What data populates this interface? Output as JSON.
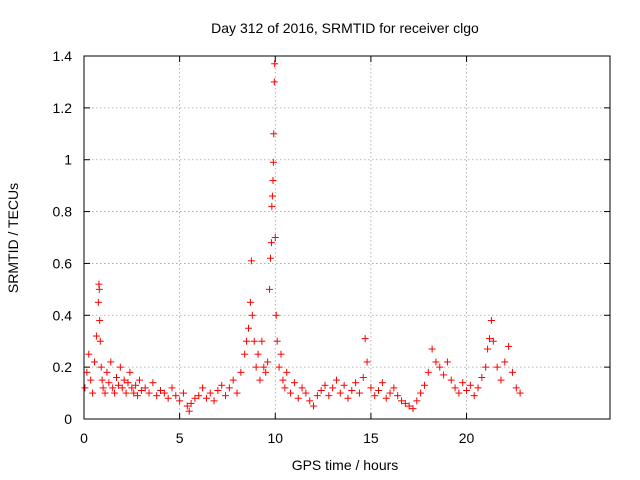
{
  "chart_data": {
    "type": "scatter",
    "title": "Day 312 of 2016, SRMTID for receiver clgo",
    "xlabel": "GPS time / hours",
    "ylabel": "SRMTID / TECUs",
    "xlim": [
      0,
      27.5
    ],
    "ylim": [
      0,
      1.4
    ],
    "xticks": [
      0,
      5,
      10,
      15,
      20
    ],
    "xtick_labels": [
      "0",
      "5",
      "10",
      "15",
      "20"
    ],
    "yticks": [
      0,
      0.2,
      0.4,
      0.6,
      0.8,
      1.0,
      1.2,
      1.4
    ],
    "ytick_labels": [
      "0",
      "0.2",
      "0.4",
      "0.6",
      "0.8",
      "1",
      "1.2",
      "1.4"
    ],
    "grid": true,
    "marker": "+",
    "color": "#ff0000",
    "series": [
      {
        "name": "SRMTID",
        "x": [
          0.05,
          0.15,
          0.25,
          0.35,
          0.45,
          0.55,
          0.65,
          0.75,
          0.78,
          0.8,
          0.82,
          0.85,
          0.9,
          0.95,
          1.0,
          1.1,
          1.2,
          1.3,
          1.4,
          1.5,
          1.6,
          1.7,
          1.8,
          1.9,
          2.0,
          2.1,
          2.2,
          2.3,
          2.4,
          2.5,
          2.6,
          2.7,
          2.8,
          2.9,
          3.0,
          3.2,
          3.4,
          3.6,
          3.8,
          4.0,
          4.2,
          4.4,
          4.6,
          4.8,
          5.0,
          5.2,
          5.4,
          5.5,
          5.6,
          5.8,
          6.0,
          6.2,
          6.4,
          6.6,
          6.8,
          7.0,
          7.2,
          7.4,
          7.6,
          7.8,
          8.0,
          8.2,
          8.4,
          8.5,
          8.6,
          8.7,
          8.75,
          8.8,
          8.9,
          9.0,
          9.1,
          9.2,
          9.3,
          9.4,
          9.5,
          9.6,
          9.7,
          9.75,
          9.8,
          9.82,
          9.85,
          9.88,
          9.9,
          9.92,
          9.95,
          9.97,
          10.0,
          10.05,
          10.1,
          10.2,
          10.3,
          10.4,
          10.5,
          10.6,
          10.8,
          11.0,
          11.2,
          11.4,
          11.6,
          11.8,
          12.0,
          12.2,
          12.4,
          12.6,
          12.8,
          13.0,
          13.2,
          13.4,
          13.6,
          13.8,
          14.0,
          14.2,
          14.4,
          14.6,
          14.7,
          14.8,
          15.0,
          15.2,
          15.4,
          15.6,
          15.8,
          16.0,
          16.2,
          16.4,
          16.6,
          16.8,
          17.0,
          17.2,
          17.4,
          17.6,
          17.8,
          18.0,
          18.2,
          18.4,
          18.6,
          18.8,
          19.0,
          19.2,
          19.4,
          19.6,
          19.8,
          20.0,
          20.2,
          20.4,
          20.6,
          20.8,
          21.0,
          21.1,
          21.2,
          21.3,
          21.4,
          21.6,
          21.8,
          22.0,
          22.2,
          22.4,
          22.6,
          22.8
        ],
        "y": [
          0.12,
          0.18,
          0.25,
          0.15,
          0.1,
          0.22,
          0.32,
          0.45,
          0.52,
          0.5,
          0.38,
          0.3,
          0.2,
          0.15,
          0.12,
          0.1,
          0.18,
          0.14,
          0.22,
          0.12,
          0.1,
          0.16,
          0.13,
          0.2,
          0.12,
          0.15,
          0.1,
          0.14,
          0.18,
          0.12,
          0.1,
          0.13,
          0.09,
          0.15,
          0.11,
          0.12,
          0.1,
          0.14,
          0.09,
          0.11,
          0.1,
          0.08,
          0.12,
          0.09,
          0.07,
          0.1,
          0.05,
          0.03,
          0.06,
          0.08,
          0.09,
          0.12,
          0.08,
          0.1,
          0.07,
          0.11,
          0.13,
          0.09,
          0.12,
          0.15,
          0.1,
          0.18,
          0.25,
          0.3,
          0.35,
          0.45,
          0.61,
          0.4,
          0.3,
          0.2,
          0.25,
          0.15,
          0.3,
          0.2,
          0.18,
          0.22,
          0.5,
          0.62,
          0.68,
          0.82,
          0.86,
          0.92,
          0.99,
          1.1,
          1.3,
          1.37,
          0.7,
          0.4,
          0.3,
          0.2,
          0.25,
          0.15,
          0.12,
          0.18,
          0.1,
          0.14,
          0.08,
          0.12,
          0.1,
          0.07,
          0.05,
          0.09,
          0.11,
          0.13,
          0.09,
          0.12,
          0.15,
          0.1,
          0.13,
          0.08,
          0.11,
          0.14,
          0.1,
          0.16,
          0.31,
          0.22,
          0.12,
          0.09,
          0.11,
          0.14,
          0.08,
          0.1,
          0.12,
          0.09,
          0.07,
          0.06,
          0.05,
          0.04,
          0.07,
          0.1,
          0.13,
          0.18,
          0.27,
          0.22,
          0.2,
          0.17,
          0.22,
          0.15,
          0.12,
          0.1,
          0.14,
          0.11,
          0.13,
          0.09,
          0.12,
          0.16,
          0.2,
          0.27,
          0.31,
          0.38,
          0.3,
          0.2,
          0.15,
          0.22,
          0.28,
          0.18,
          0.12,
          0.1
        ]
      }
    ]
  }
}
